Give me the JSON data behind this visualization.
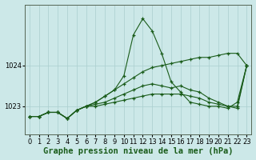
{
  "bg_color": "#cce8e8",
  "grid_color": "#aacece",
  "line_color": "#1a5c1a",
  "marker": "+",
  "title": "Graphe pression niveau de la mer (hPa)",
  "xlim": [
    -0.5,
    23.5
  ],
  "ylim": [
    1022.3,
    1025.5
  ],
  "yticks": [
    1023,
    1024
  ],
  "xticks": [
    0,
    1,
    2,
    3,
    4,
    5,
    6,
    7,
    8,
    9,
    10,
    11,
    12,
    13,
    14,
    15,
    16,
    17,
    18,
    19,
    20,
    21,
    22,
    23
  ],
  "lines": [
    {
      "x": [
        0,
        1,
        2,
        3,
        4,
        5,
        6,
        7,
        8,
        9,
        10,
        11,
        12,
        13,
        14,
        15,
        16,
        17,
        18,
        19,
        20,
        21,
        22,
        23
      ],
      "y": [
        1022.75,
        1022.75,
        1022.85,
        1022.85,
        1022.7,
        1022.9,
        1023.0,
        1023.1,
        1023.25,
        1023.4,
        1023.75,
        1024.75,
        1025.15,
        1024.85,
        1024.3,
        1023.6,
        1023.35,
        1023.1,
        1023.05,
        1023.0,
        1023.0,
        1022.95,
        1023.1,
        1024.0
      ]
    },
    {
      "x": [
        0,
        1,
        2,
        3,
        4,
        5,
        6,
        7,
        8,
        9,
        10,
        11,
        12,
        13,
        14,
        15,
        16,
        17,
        18,
        19,
        20,
        21,
        22,
        23
      ],
      "y": [
        1022.75,
        1022.75,
        1022.85,
        1022.85,
        1022.7,
        1022.9,
        1023.0,
        1023.1,
        1023.25,
        1023.4,
        1023.55,
        1023.7,
        1023.85,
        1023.95,
        1024.0,
        1024.05,
        1024.1,
        1024.15,
        1024.2,
        1024.2,
        1024.25,
        1024.3,
        1024.3,
        1024.0
      ]
    },
    {
      "x": [
        0,
        1,
        2,
        3,
        4,
        5,
        6,
        7,
        8,
        9,
        10,
        11,
        12,
        13,
        14,
        15,
        16,
        17,
        18,
        19,
        20,
        21,
        22,
        23
      ],
      "y": [
        1022.75,
        1022.75,
        1022.85,
        1022.85,
        1022.7,
        1022.9,
        1023.0,
        1023.05,
        1023.1,
        1023.2,
        1023.3,
        1023.4,
        1023.5,
        1023.55,
        1023.5,
        1023.45,
        1023.5,
        1023.4,
        1023.35,
        1023.2,
        1023.1,
        1023.0,
        1023.0,
        1024.0
      ]
    },
    {
      "x": [
        0,
        1,
        2,
        3,
        4,
        5,
        6,
        7,
        8,
        9,
        10,
        11,
        12,
        13,
        14,
        15,
        16,
        17,
        18,
        19,
        20,
        21,
        22,
        23
      ],
      "y": [
        1022.75,
        1022.75,
        1022.85,
        1022.85,
        1022.7,
        1022.9,
        1023.0,
        1023.0,
        1023.05,
        1023.1,
        1023.15,
        1023.2,
        1023.25,
        1023.3,
        1023.3,
        1023.3,
        1023.3,
        1023.25,
        1023.2,
        1023.1,
        1023.05,
        1023.0,
        1022.95,
        1024.0
      ]
    }
  ],
  "title_fontsize": 7.5,
  "tick_fontsize": 6
}
